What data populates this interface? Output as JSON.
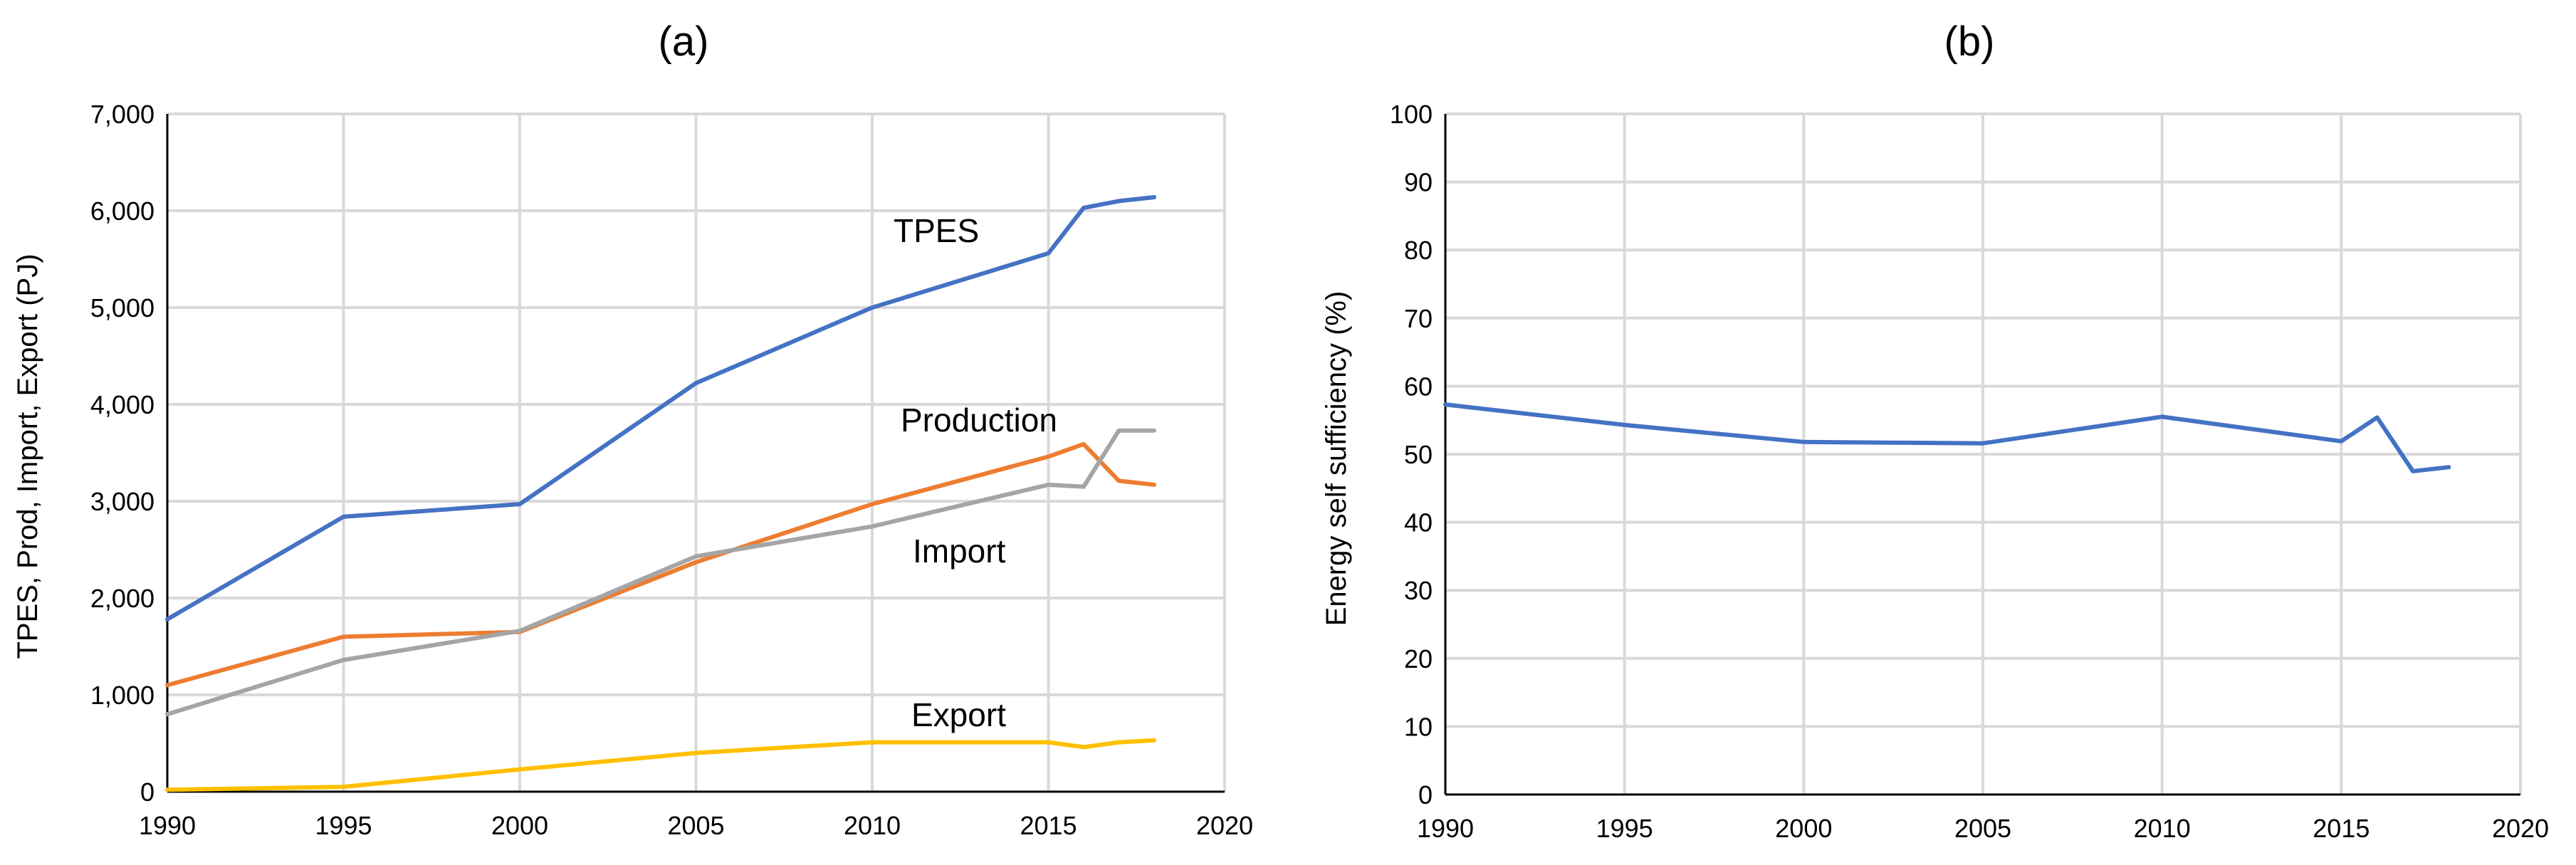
{
  "chart_data": [
    {
      "type": "line",
      "title": "(a)",
      "xlabel": "",
      "ylabel": "TPES, Prod, Import, Export (PJ)",
      "xlim": [
        1990,
        2020
      ],
      "ylim": [
        0,
        7000
      ],
      "x_ticks": [
        1990,
        1995,
        2000,
        2005,
        2010,
        2015,
        2020
      ],
      "y_ticks": [
        0,
        1000,
        2000,
        3000,
        4000,
        5000,
        6000,
        7000
      ],
      "x_tick_labels": [
        "1990",
        "1995",
        "2000",
        "2005",
        "2010",
        "2015",
        "2020"
      ],
      "y_tick_labels": [
        "0",
        "1,000",
        "2,000",
        "3,000",
        "4,000",
        "5,000",
        "6,000",
        "7,000"
      ],
      "grid": true,
      "series": [
        {
          "name": "TPES",
          "label": "TPES",
          "color": "#4472c4",
          "x": [
            1990,
            1995,
            2000,
            2005,
            2010,
            2015,
            2016,
            2017,
            2018
          ],
          "y": [
            1780,
            2840,
            2970,
            4220,
            5000,
            5560,
            6030,
            6100,
            6140
          ]
        },
        {
          "name": "Production",
          "label": "Production",
          "color": "#ed7d31",
          "x": [
            1990,
            1995,
            2000,
            2005,
            2010,
            2015,
            2016,
            2017,
            2018
          ],
          "y": [
            1100,
            1600,
            1650,
            2370,
            2970,
            3460,
            3590,
            3210,
            3170
          ]
        },
        {
          "name": "Import",
          "label": "Import",
          "color": "#a5a5a5",
          "x": [
            1990,
            1995,
            2000,
            2005,
            2010,
            2015,
            2016,
            2017,
            2018
          ],
          "y": [
            800,
            1360,
            1660,
            2430,
            2740,
            3170,
            3150,
            3730,
            3730
          ]
        },
        {
          "name": "Export",
          "label": "Export",
          "color": "#ffc000",
          "x": [
            1990,
            1995,
            2000,
            2005,
            2010,
            2015,
            2016,
            2017,
            2018
          ],
          "y": [
            20,
            50,
            230,
            400,
            510,
            510,
            460,
            510,
            530
          ]
        }
      ]
    },
    {
      "type": "line",
      "title": "(b)",
      "xlabel": "",
      "ylabel": "Energy self sufficiency (%)",
      "xlim": [
        1990,
        2020
      ],
      "ylim": [
        0,
        100
      ],
      "x_ticks": [
        1990,
        1995,
        2000,
        2005,
        2010,
        2015,
        2020
      ],
      "y_ticks": [
        0,
        10,
        20,
        30,
        40,
        50,
        60,
        70,
        80,
        90,
        100
      ],
      "x_tick_labels": [
        "1990",
        "1995",
        "2000",
        "2005",
        "2010",
        "2015",
        "2020"
      ],
      "y_tick_labels": [
        "0",
        "10",
        "20",
        "30",
        "40",
        "50",
        "60",
        "70",
        "80",
        "90",
        "100"
      ],
      "grid": true,
      "series": [
        {
          "name": "Energy self sufficiency",
          "color": "#4472c4",
          "x": [
            1990,
            1995,
            2000,
            2005,
            2010,
            2015,
            2016,
            2017,
            2018
          ],
          "y": [
            57.3,
            54.3,
            51.8,
            51.6,
            55.5,
            51.9,
            55.4,
            47.5,
            48.1
          ]
        }
      ]
    }
  ]
}
